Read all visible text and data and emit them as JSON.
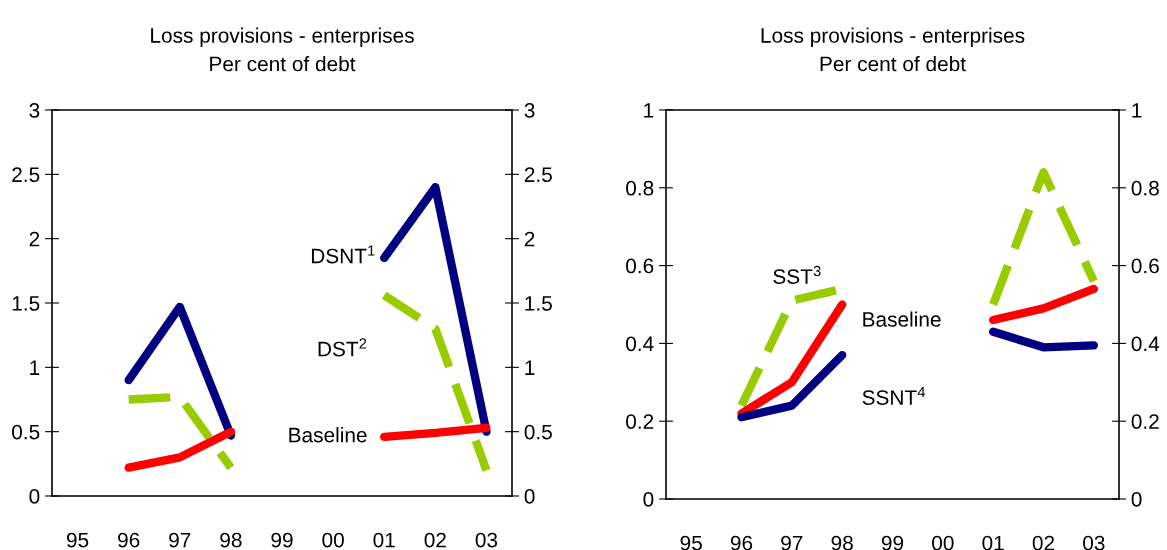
{
  "chart_data": [
    {
      "type": "line",
      "title": "Loss provisions - enterprises",
      "subtitle": "Per cent of debt",
      "categories": [
        "95",
        "96",
        "97",
        "98",
        "99",
        "00",
        "01",
        "02",
        "03"
      ],
      "ylim": [
        0,
        3
      ],
      "yticks": [
        0,
        0.5,
        1,
        1.5,
        2,
        2.5,
        3
      ],
      "y2lim": [
        0,
        3
      ],
      "y2ticks": [
        0,
        0.5,
        1,
        1.5,
        2,
        2.5,
        3
      ],
      "series": [
        {
          "name": "DSNT$^{1}$",
          "color": "#000080",
          "line_style": "solid",
          "values": [
            null,
            0.9,
            1.47,
            0.47,
            null,
            null,
            1.85,
            2.4,
            0.5
          ]
        },
        {
          "name": "DST$^{2}$",
          "color": "#99cc00",
          "line_style": "dashed",
          "values": [
            null,
            0.75,
            0.77,
            0.22,
            null,
            null,
            1.56,
            1.3,
            0.2
          ]
        },
        {
          "name": "Baseline",
          "color": "#ff0000",
          "line_style": "solid",
          "values": [
            null,
            0.22,
            0.3,
            0.5,
            null,
            null,
            0.46,
            0.49,
            0.53
          ]
        }
      ]
    },
    {
      "type": "line",
      "title": "Loss provisions - enterprises",
      "subtitle": "Per cent of debt",
      "categories": [
        "95",
        "96",
        "97",
        "98",
        "99",
        "00",
        "01",
        "02",
        "03"
      ],
      "ylim": [
        0,
        1
      ],
      "yticks": [
        0,
        0.2,
        0.4,
        0.6,
        0.8,
        1
      ],
      "y2lim": [
        0,
        1
      ],
      "y2ticks": [
        0,
        0.2,
        0.4,
        0.6,
        0.8,
        1
      ],
      "series": [
        {
          "name": "SST$^{3}$",
          "color": "#99cc00",
          "line_style": "dashed",
          "values": [
            null,
            0.24,
            0.51,
            0.54,
            null,
            null,
            0.5,
            0.84,
            0.56
          ]
        },
        {
          "name": "Baseline",
          "color": "#ff0000",
          "line_style": "solid",
          "values": [
            null,
            0.22,
            0.3,
            0.5,
            null,
            null,
            0.46,
            0.49,
            0.54
          ]
        },
        {
          "name": "SSNT$^{4}$",
          "color": "#000080",
          "line_style": "solid",
          "values": [
            null,
            0.21,
            0.24,
            0.37,
            null,
            null,
            0.43,
            0.39,
            0.395
          ]
        }
      ]
    }
  ]
}
